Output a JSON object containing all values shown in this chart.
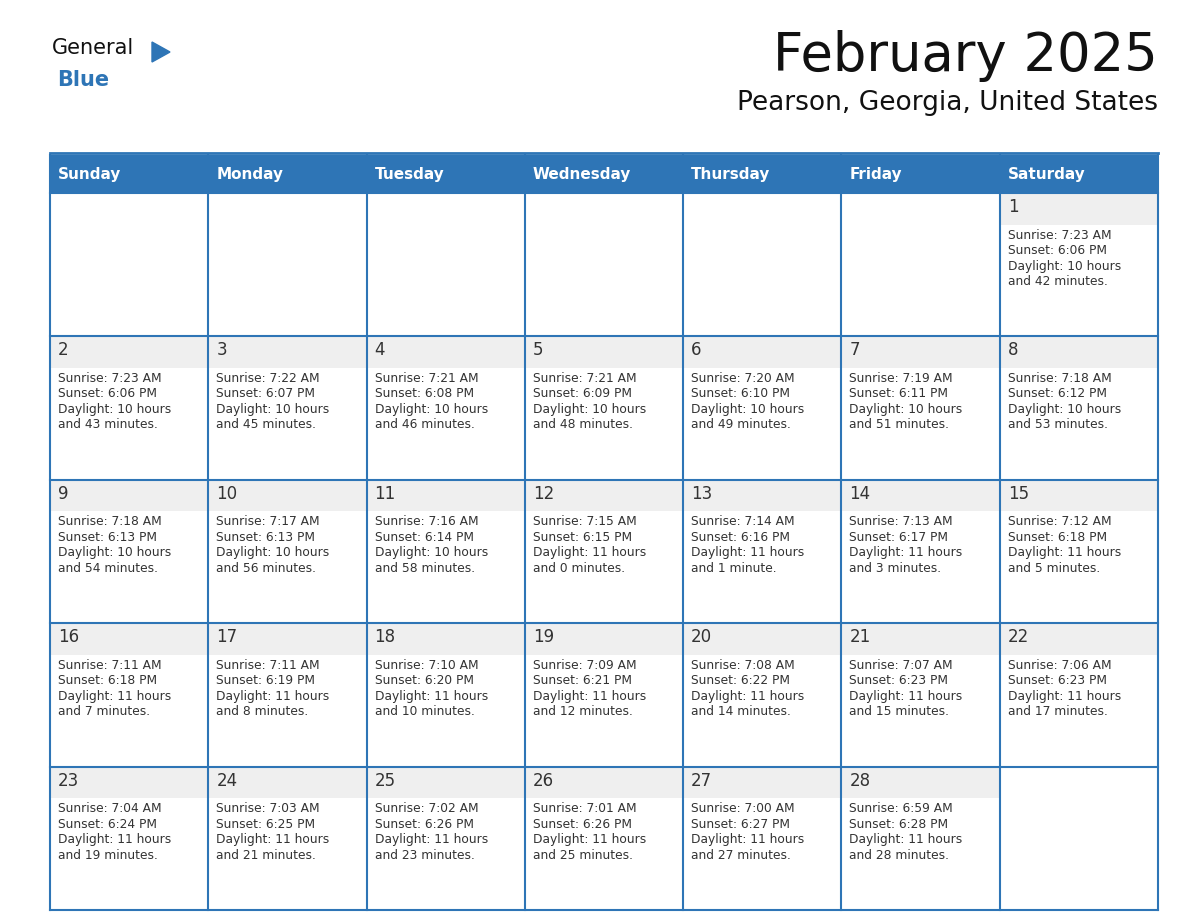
{
  "title": "February 2025",
  "subtitle": "Pearson, Georgia, United States",
  "header_color": "#2E75B6",
  "header_text_color": "#FFFFFF",
  "cell_bg_color": "#FFFFFF",
  "cell_top_bg_color": "#EFEFEF",
  "grid_line_color": "#2E75B6",
  "day_number_color": "#333333",
  "info_text_color": "#333333",
  "logo_text_color": "#1a1a1a",
  "logo_blue_color": "#2E75B6",
  "days_of_week": [
    "Sunday",
    "Monday",
    "Tuesday",
    "Wednesday",
    "Thursday",
    "Friday",
    "Saturday"
  ],
  "calendar_data": [
    [
      null,
      null,
      null,
      null,
      null,
      null,
      {
        "day": 1,
        "sunrise": "7:23 AM",
        "sunset": "6:06 PM",
        "daylight": "10 hours",
        "daylight2": "and 42 minutes."
      }
    ],
    [
      {
        "day": 2,
        "sunrise": "7:23 AM",
        "sunset": "6:06 PM",
        "daylight": "10 hours",
        "daylight2": "and 43 minutes."
      },
      {
        "day": 3,
        "sunrise": "7:22 AM",
        "sunset": "6:07 PM",
        "daylight": "10 hours",
        "daylight2": "and 45 minutes."
      },
      {
        "day": 4,
        "sunrise": "7:21 AM",
        "sunset": "6:08 PM",
        "daylight": "10 hours",
        "daylight2": "and 46 minutes."
      },
      {
        "day": 5,
        "sunrise": "7:21 AM",
        "sunset": "6:09 PM",
        "daylight": "10 hours",
        "daylight2": "and 48 minutes."
      },
      {
        "day": 6,
        "sunrise": "7:20 AM",
        "sunset": "6:10 PM",
        "daylight": "10 hours",
        "daylight2": "and 49 minutes."
      },
      {
        "day": 7,
        "sunrise": "7:19 AM",
        "sunset": "6:11 PM",
        "daylight": "10 hours",
        "daylight2": "and 51 minutes."
      },
      {
        "day": 8,
        "sunrise": "7:18 AM",
        "sunset": "6:12 PM",
        "daylight": "10 hours",
        "daylight2": "and 53 minutes."
      }
    ],
    [
      {
        "day": 9,
        "sunrise": "7:18 AM",
        "sunset": "6:13 PM",
        "daylight": "10 hours",
        "daylight2": "and 54 minutes."
      },
      {
        "day": 10,
        "sunrise": "7:17 AM",
        "sunset": "6:13 PM",
        "daylight": "10 hours",
        "daylight2": "and 56 minutes."
      },
      {
        "day": 11,
        "sunrise": "7:16 AM",
        "sunset": "6:14 PM",
        "daylight": "10 hours",
        "daylight2": "and 58 minutes."
      },
      {
        "day": 12,
        "sunrise": "7:15 AM",
        "sunset": "6:15 PM",
        "daylight": "11 hours",
        "daylight2": "and 0 minutes."
      },
      {
        "day": 13,
        "sunrise": "7:14 AM",
        "sunset": "6:16 PM",
        "daylight": "11 hours",
        "daylight2": "and 1 minute."
      },
      {
        "day": 14,
        "sunrise": "7:13 AM",
        "sunset": "6:17 PM",
        "daylight": "11 hours",
        "daylight2": "and 3 minutes."
      },
      {
        "day": 15,
        "sunrise": "7:12 AM",
        "sunset": "6:18 PM",
        "daylight": "11 hours",
        "daylight2": "and 5 minutes."
      }
    ],
    [
      {
        "day": 16,
        "sunrise": "7:11 AM",
        "sunset": "6:18 PM",
        "daylight": "11 hours",
        "daylight2": "and 7 minutes."
      },
      {
        "day": 17,
        "sunrise": "7:11 AM",
        "sunset": "6:19 PM",
        "daylight": "11 hours",
        "daylight2": "and 8 minutes."
      },
      {
        "day": 18,
        "sunrise": "7:10 AM",
        "sunset": "6:20 PM",
        "daylight": "11 hours",
        "daylight2": "and 10 minutes."
      },
      {
        "day": 19,
        "sunrise": "7:09 AM",
        "sunset": "6:21 PM",
        "daylight": "11 hours",
        "daylight2": "and 12 minutes."
      },
      {
        "day": 20,
        "sunrise": "7:08 AM",
        "sunset": "6:22 PM",
        "daylight": "11 hours",
        "daylight2": "and 14 minutes."
      },
      {
        "day": 21,
        "sunrise": "7:07 AM",
        "sunset": "6:23 PM",
        "daylight": "11 hours",
        "daylight2": "and 15 minutes."
      },
      {
        "day": 22,
        "sunrise": "7:06 AM",
        "sunset": "6:23 PM",
        "daylight": "11 hours",
        "daylight2": "and 17 minutes."
      }
    ],
    [
      {
        "day": 23,
        "sunrise": "7:04 AM",
        "sunset": "6:24 PM",
        "daylight": "11 hours",
        "daylight2": "and 19 minutes."
      },
      {
        "day": 24,
        "sunrise": "7:03 AM",
        "sunset": "6:25 PM",
        "daylight": "11 hours",
        "daylight2": "and 21 minutes."
      },
      {
        "day": 25,
        "sunrise": "7:02 AM",
        "sunset": "6:26 PM",
        "daylight": "11 hours",
        "daylight2": "and 23 minutes."
      },
      {
        "day": 26,
        "sunrise": "7:01 AM",
        "sunset": "6:26 PM",
        "daylight": "11 hours",
        "daylight2": "and 25 minutes."
      },
      {
        "day": 27,
        "sunrise": "7:00 AM",
        "sunset": "6:27 PM",
        "daylight": "11 hours",
        "daylight2": "and 27 minutes."
      },
      {
        "day": 28,
        "sunrise": "6:59 AM",
        "sunset": "6:28 PM",
        "daylight": "11 hours",
        "daylight2": "and 28 minutes."
      },
      null
    ]
  ]
}
